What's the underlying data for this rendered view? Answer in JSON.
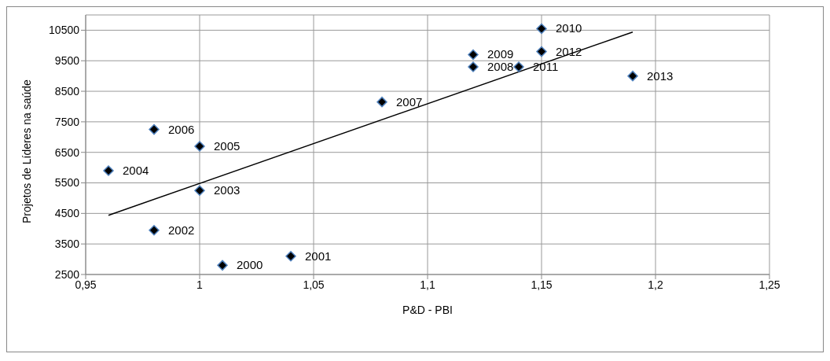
{
  "chart_data": {
    "type": "scatter",
    "xlabel": "P&D - PBI",
    "ylabel": "Projetos de Líderes na saúde",
    "xlim": [
      0.95,
      1.25
    ],
    "xticks": [
      {
        "value": 0.95,
        "label": "0,95"
      },
      {
        "value": 1,
        "label": "1"
      },
      {
        "value": 1.05,
        "label": "1,05"
      },
      {
        "value": 1.1,
        "label": "1,1"
      },
      {
        "value": 1.15,
        "label": "1,15"
      },
      {
        "value": 1.2,
        "label": "1,2"
      },
      {
        "value": 1.25,
        "label": "1,25"
      }
    ],
    "ylim": [
      2500,
      11000
    ],
    "yticks": [
      2500,
      3500,
      4500,
      5500,
      6500,
      7500,
      8500,
      9500,
      10500
    ],
    "grid": true,
    "legend": false,
    "marker": "diamond",
    "series": [
      {
        "color": "#000000",
        "x": [
          1.01,
          1.04,
          0.98,
          1.0,
          0.96,
          1.0,
          0.98,
          1.08,
          1.12,
          1.12,
          1.15,
          1.14,
          1.15,
          1.19
        ],
        "values": [
          2800,
          3100,
          3950,
          5250,
          5900,
          6700,
          7250,
          8150,
          9300,
          9700,
          10550,
          9300,
          9800,
          9000
        ]
      },
      {
        "type": "line",
        "color": "#000000",
        "x": [
          0.96,
          1.19
        ],
        "values": [
          4440,
          10440
        ],
        "marker": "none",
        "line_style": "solid"
      }
    ],
    "annotations": [
      {
        "text": "2000",
        "x": 1.01,
        "y": 2800
      },
      {
        "text": "2001",
        "x": 1.04,
        "y": 3100
      },
      {
        "text": "2002",
        "x": 0.98,
        "y": 3950
      },
      {
        "text": "2003",
        "x": 1.0,
        "y": 5250
      },
      {
        "text": "2004",
        "x": 0.96,
        "y": 5900
      },
      {
        "text": "2005",
        "x": 1.0,
        "y": 6700
      },
      {
        "text": "2006",
        "x": 0.98,
        "y": 7250
      },
      {
        "text": "2007",
        "x": 1.08,
        "y": 8150
      },
      {
        "text": "2008",
        "x": 1.12,
        "y": 9300
      },
      {
        "text": "2009",
        "x": 1.12,
        "y": 9700
      },
      {
        "text": "2010",
        "x": 1.15,
        "y": 10550
      },
      {
        "text": "2011",
        "x": 1.14,
        "y": 9300
      },
      {
        "text": "2012",
        "x": 1.15,
        "y": 9800
      },
      {
        "text": "2013",
        "x": 1.19,
        "y": 9000
      }
    ]
  }
}
